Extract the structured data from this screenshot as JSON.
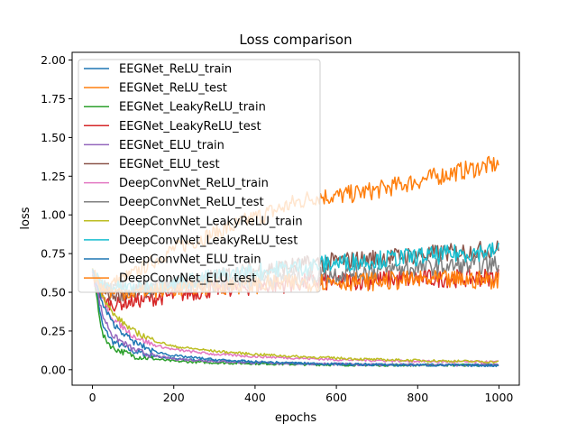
{
  "chart_data": {
    "type": "line",
    "title": "Loss comparison",
    "xlabel": "epochs",
    "ylabel": "loss",
    "xlim": [
      -50,
      1050
    ],
    "ylim": [
      -0.1,
      2.05
    ],
    "xticks": [
      0,
      200,
      400,
      600,
      800,
      1000
    ],
    "yticks": [
      0.0,
      0.25,
      0.5,
      0.75,
      1.0,
      1.25,
      1.5,
      1.75,
      2.0
    ],
    "xtick_labels": [
      "0",
      "200",
      "400",
      "600",
      "800",
      "1000"
    ],
    "ytick_labels": [
      "0.00",
      "0.25",
      "0.50",
      "0.75",
      "1.00",
      "1.25",
      "1.50",
      "1.75",
      "2.00"
    ],
    "grid": false,
    "legend_position": "upper-left",
    "series": [
      {
        "name": "EEGNet_ReLU_train",
        "color": "#1f77b4",
        "x": [
          0,
          25,
          50,
          100,
          150,
          200,
          300,
          400,
          500,
          600,
          700,
          800,
          900,
          1000
        ],
        "y": [
          0.65,
          0.28,
          0.18,
          0.12,
          0.09,
          0.07,
          0.055,
          0.045,
          0.04,
          0.035,
          0.032,
          0.03,
          0.03,
          0.03
        ]
      },
      {
        "name": "EEGNet_ReLU_test",
        "color": "#ff7f0e",
        "x": [
          0,
          25,
          50,
          100,
          150,
          200,
          300,
          400,
          500,
          550,
          600,
          700,
          800,
          900,
          1000
        ],
        "y": [
          0.62,
          0.55,
          0.56,
          0.62,
          0.7,
          0.78,
          0.88,
          0.98,
          1.08,
          1.12,
          1.12,
          1.16,
          1.22,
          1.28,
          1.33
        ]
      },
      {
        "name": "EEGNet_LeakyReLU_train",
        "color": "#2ca02c",
        "x": [
          0,
          25,
          50,
          100,
          150,
          200,
          300,
          400,
          500,
          600,
          700,
          800,
          900,
          1000
        ],
        "y": [
          0.65,
          0.22,
          0.14,
          0.09,
          0.07,
          0.055,
          0.045,
          0.04,
          0.035,
          0.032,
          0.03,
          0.03,
          0.03,
          0.03
        ]
      },
      {
        "name": "EEGNet_LeakyReLU_test",
        "color": "#d62728",
        "x": [
          0,
          25,
          50,
          100,
          150,
          200,
          300,
          400,
          500,
          600,
          700,
          800,
          900,
          1000
        ],
        "y": [
          0.6,
          0.45,
          0.42,
          0.44,
          0.46,
          0.48,
          0.52,
          0.54,
          0.56,
          0.57,
          0.58,
          0.59,
          0.59,
          0.6
        ]
      },
      {
        "name": "EEGNet_ELU_train",
        "color": "#9467bd",
        "x": [
          0,
          25,
          50,
          100,
          150,
          200,
          300,
          400,
          500,
          600,
          700,
          800,
          900,
          1000
        ],
        "y": [
          0.65,
          0.35,
          0.22,
          0.13,
          0.09,
          0.07,
          0.055,
          0.045,
          0.04,
          0.036,
          0.033,
          0.03,
          0.03,
          0.03
        ]
      },
      {
        "name": "EEGNet_ELU_test",
        "color": "#8c564b",
        "x": [
          0,
          25,
          50,
          100,
          150,
          200,
          300,
          400,
          500,
          600,
          700,
          800,
          900,
          1000
        ],
        "y": [
          0.6,
          0.5,
          0.48,
          0.5,
          0.52,
          0.55,
          0.6,
          0.64,
          0.67,
          0.7,
          0.72,
          0.74,
          0.76,
          0.78
        ]
      },
      {
        "name": "DeepConvNet_ReLU_train",
        "color": "#e377c2",
        "x": [
          0,
          25,
          50,
          100,
          150,
          200,
          300,
          400,
          500,
          600,
          700,
          800,
          900,
          1000
        ],
        "y": [
          0.65,
          0.45,
          0.33,
          0.22,
          0.16,
          0.13,
          0.1,
          0.085,
          0.075,
          0.065,
          0.06,
          0.055,
          0.05,
          0.05
        ]
      },
      {
        "name": "DeepConvNet_ReLU_test",
        "color": "#7f7f7f",
        "x": [
          0,
          25,
          50,
          100,
          150,
          200,
          300,
          400,
          500,
          600,
          700,
          800,
          900,
          1000
        ],
        "y": [
          0.62,
          0.54,
          0.52,
          0.52,
          0.53,
          0.54,
          0.56,
          0.58,
          0.6,
          0.62,
          0.64,
          0.66,
          0.67,
          0.68
        ]
      },
      {
        "name": "DeepConvNet_LeakyReLU_train",
        "color": "#bcbd22",
        "x": [
          0,
          25,
          50,
          100,
          150,
          200,
          300,
          400,
          500,
          600,
          700,
          800,
          900,
          1000
        ],
        "y": [
          0.65,
          0.48,
          0.36,
          0.25,
          0.19,
          0.15,
          0.12,
          0.1,
          0.085,
          0.075,
          0.065,
          0.06,
          0.055,
          0.05
        ]
      },
      {
        "name": "DeepConvNet_LeakyReLU_test",
        "color": "#17becf",
        "x": [
          0,
          25,
          50,
          100,
          150,
          200,
          300,
          400,
          500,
          600,
          700,
          800,
          900,
          1000
        ],
        "y": [
          0.62,
          0.55,
          0.53,
          0.53,
          0.54,
          0.56,
          0.6,
          0.63,
          0.66,
          0.69,
          0.71,
          0.73,
          0.75,
          0.77
        ]
      },
      {
        "name": "DeepConvNet_ELU_train",
        "color": "#1f77b4",
        "x": [
          0,
          25,
          50,
          100,
          150,
          200,
          300,
          400,
          500,
          600,
          700,
          800,
          900,
          1000
        ],
        "y": [
          0.65,
          0.42,
          0.3,
          0.18,
          0.12,
          0.09,
          0.065,
          0.05,
          0.042,
          0.036,
          0.032,
          0.03,
          0.028,
          0.028
        ]
      },
      {
        "name": "DeepConvNet_ELU_test",
        "color": "#ff7f0e",
        "x": [
          0,
          25,
          50,
          100,
          150,
          200,
          300,
          400,
          500,
          600,
          700,
          800,
          900,
          1000
        ],
        "y": [
          0.62,
          0.52,
          0.5,
          0.5,
          0.51,
          0.52,
          0.54,
          0.55,
          0.56,
          0.57,
          0.57,
          0.58,
          0.58,
          0.58
        ]
      }
    ]
  }
}
